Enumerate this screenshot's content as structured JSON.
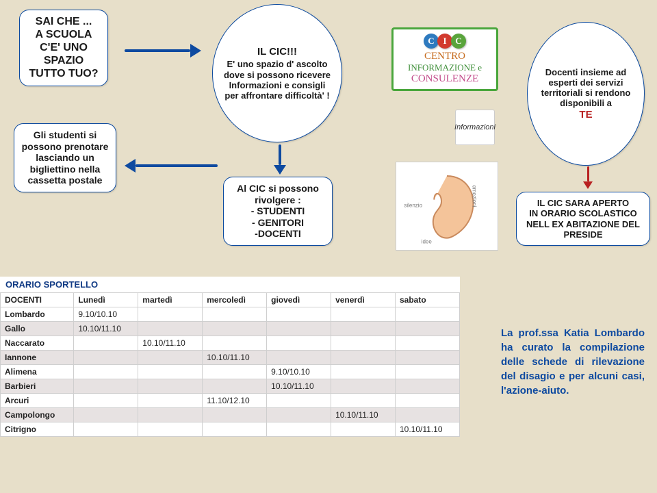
{
  "boxes": {
    "sai_che": "SAI CHE ...\nA SCUOLA\nC'E' UNO\nSPAZIO\nTUTTO TUO?",
    "studenti": "Gli studenti si possono prenotare lasciando un bigliettino nella cassetta postale",
    "il_cic_title": "IL CIC!!!",
    "il_cic_body": "E' uno spazio d' ascolto dove si possono ricevere Informazioni e consigli per affrontare difficoltà' !",
    "rivolgere_head": "Al CIC si possono rivolgere :",
    "rivolgere_list": "- STUDENTI\n- GENITORI\n-DOCENTI",
    "docenti_body": "Docenti insieme ad esperti dei servizi territoriali si rendono disponibili a",
    "docenti_te": "TE",
    "aperto": "IL CIC SARA APERTO\nIN ORARIO SCOLASTICO\nNELL EX ABITAZIONE DEL\nPRESIDE"
  },
  "centro": {
    "chips": [
      {
        "letter": "C",
        "color": "#2e7abf"
      },
      {
        "letter": "I",
        "color": "#d23a2e"
      },
      {
        "letter": "C",
        "color": "#59a43b"
      }
    ],
    "line1": "CENTRO",
    "line2": "INFORMAZIONE e",
    "line3": "CONSULENZE",
    "face_label": "Informazioni"
  },
  "table": {
    "title": "ORARIO SPORTELLO",
    "columns": [
      "DOCENTI",
      "Lunedì",
      "martedì",
      "mercoledì",
      "giovedì",
      "venerdì",
      "sabato"
    ],
    "rows": [
      [
        "Lombardo",
        "9.10/10.10",
        "",
        "",
        "",
        "",
        ""
      ],
      [
        "Gallo",
        "10.10/11.10",
        "",
        "",
        "",
        "",
        ""
      ],
      [
        "Naccarato",
        "",
        "10.10/11.10",
        "",
        "",
        "",
        ""
      ],
      [
        "Iannone",
        "",
        "",
        "10.10/11.10",
        "",
        "",
        ""
      ],
      [
        "Alimena",
        "",
        "",
        "",
        "9.10/10.10",
        "",
        ""
      ],
      [
        "Barbieri",
        "",
        "",
        "",
        "10.10/11.10",
        "",
        ""
      ],
      [
        "Arcuri",
        "",
        "",
        "11.10/12.10",
        "",
        "",
        ""
      ],
      [
        "Campolongo",
        "",
        "",
        "",
        "",
        "10.10/11.10",
        ""
      ],
      [
        "Citrigno",
        "",
        "",
        "",
        "",
        "",
        "10.10/11.10"
      ]
    ]
  },
  "note": "La prof.ssa Katia Lombardo ha curato la compilazione delle schede di rilevazione del disagio e per alcuni casi, l'azione-aiuto.",
  "colors": {
    "bg": "#e7dfc9",
    "border": "#0b4aa0",
    "arrow": "#0e4aa0",
    "red": "#b82121"
  }
}
